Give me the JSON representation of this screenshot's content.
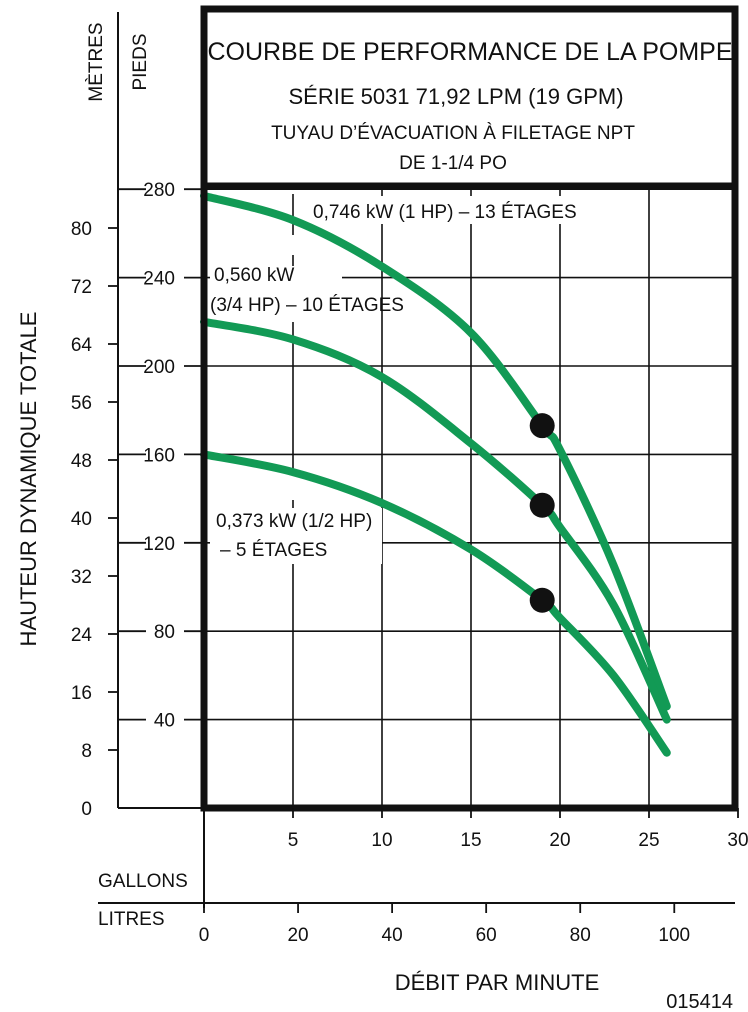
{
  "chart_data": {
    "type": "line",
    "title": "COURBE DE PERFORMANCE DE LA POMPE",
    "subtitle_lines": [
      "SÉRIE 5031 71,92 LPM (19 GPM)",
      "TUYAU D’ÉVACUATION À FILETAGE NPT",
      "DE 1-1/4 PO"
    ],
    "ylabel": "HAUTEUR DYNAMIQUE TOTALE",
    "xlabel": "DÉBIT PAR MINUTE",
    "y_units": {
      "meters": "MÈTRES",
      "feet": "PIEDS"
    },
    "x_units": {
      "gallons": "GALLONS",
      "liters": "LITRES"
    },
    "y_feet_ticks": [
      40,
      80,
      120,
      160,
      200,
      240,
      280
    ],
    "y_meter_ticks": [
      0,
      8,
      16,
      24,
      32,
      40,
      48,
      56,
      64,
      72,
      80
    ],
    "x_gallon_ticks": [
      5,
      10,
      15,
      20,
      25,
      30
    ],
    "x_liter_ticks": [
      0,
      20,
      40,
      60,
      80,
      100
    ],
    "xlim_gpm": [
      0,
      30
    ],
    "ylim_feet": [
      0,
      280
    ],
    "grid": true,
    "series": [
      {
        "label_lines": [
          "0,746 kW (1 HP) – 13 ÉTAGES"
        ],
        "points_gpm_ft": [
          [
            0,
            277
          ],
          [
            5,
            266
          ],
          [
            10,
            245
          ],
          [
            15,
            215
          ],
          [
            19,
            173
          ],
          [
            20,
            162
          ],
          [
            23,
            110
          ],
          [
            26,
            46
          ]
        ],
        "rated_point": [
          19,
          173
        ]
      },
      {
        "label_lines": [
          "0,560 kW",
          "(3/4 HP) – 10 ÉTAGES"
        ],
        "points_gpm_ft": [
          [
            0,
            220
          ],
          [
            5,
            212
          ],
          [
            10,
            195
          ],
          [
            15,
            165
          ],
          [
            19,
            137
          ],
          [
            20,
            127
          ],
          [
            23,
            92
          ],
          [
            26,
            40
          ]
        ],
        "rated_point": [
          19,
          137
        ]
      },
      {
        "label_lines": [
          "0,373 kW (1/2 HP)",
          "– 5 ÉTAGES"
        ],
        "points_gpm_ft": [
          [
            0,
            160
          ],
          [
            5,
            152
          ],
          [
            10,
            138
          ],
          [
            15,
            117
          ],
          [
            19,
            94
          ],
          [
            20,
            86
          ],
          [
            23,
            60
          ],
          [
            26,
            25
          ]
        ],
        "rated_point": [
          19,
          94
        ]
      }
    ],
    "colors": {
      "curve": "#129a55",
      "frame": "#111111",
      "marker": "#111111",
      "grid": "#111111"
    },
    "code": "015414"
  }
}
